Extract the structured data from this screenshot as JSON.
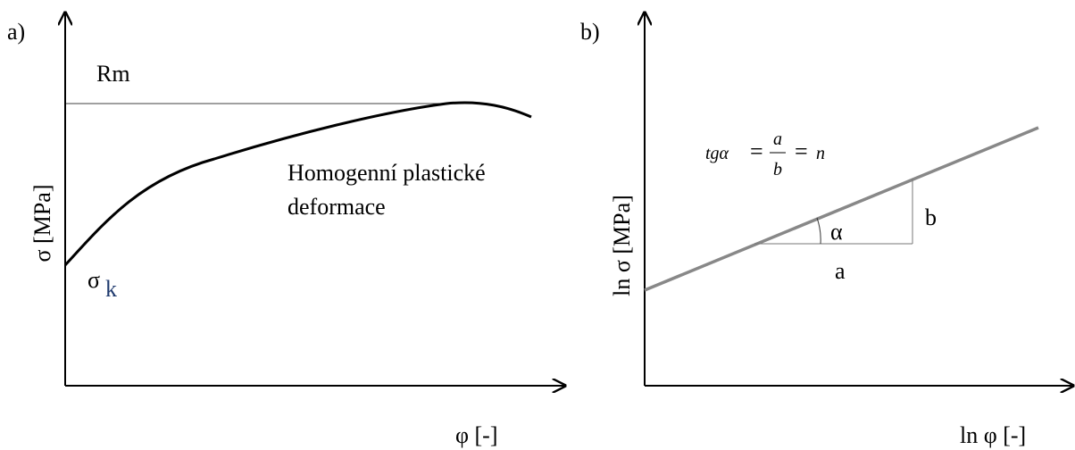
{
  "panel_a": {
    "label": "a)",
    "y_axis_label": "σ [MPa]",
    "x_axis_label": "φ [-]",
    "rm_label": "Rm",
    "sigma_k": {
      "symbol": "σ",
      "subscript": "k"
    },
    "region_label": [
      "Homogenní plastické",
      "deformace"
    ]
  },
  "panel_b": {
    "label": "b)",
    "y_axis_label": "ln σ [MPa]",
    "x_axis_label": "ln φ [-]",
    "formula": {
      "lhs": "tgα",
      "equals": "=",
      "numerator": "a",
      "denominator": "b",
      "rhs": "n"
    },
    "angle_label": "α",
    "run_label": "a",
    "rise_label": "b"
  }
}
